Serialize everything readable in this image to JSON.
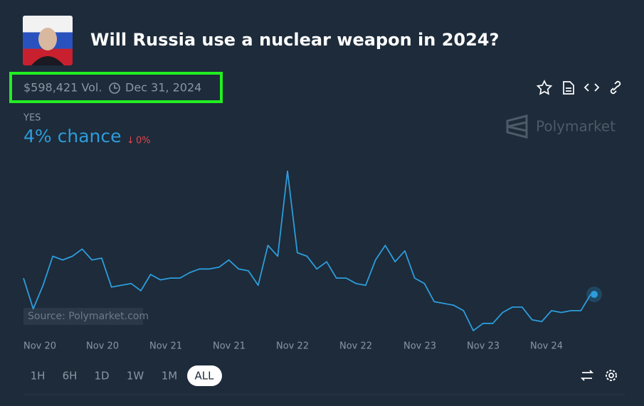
{
  "header": {
    "title": "Will Russia use a nuclear weapon in 2024?",
    "volume": "$598,421 Vol.",
    "end_date": "Dec 31, 2024"
  },
  "outcome": {
    "name": "YES",
    "chance": "4% chance",
    "change": "0%"
  },
  "brand": "Polymarket",
  "chart_data": {
    "type": "line",
    "series": [
      {
        "color": "#2d9cdb",
        "values": [
          4.9,
          3.2,
          4.5,
          6.1,
          5.9,
          6.1,
          6.5,
          5.9,
          6.0,
          4.4,
          4.5,
          4.6,
          4.2,
          5.1,
          4.8,
          4.9,
          4.9,
          5.2,
          5.4,
          5.4,
          5.5,
          5.9,
          5.4,
          5.3,
          4.5,
          6.7,
          6.1,
          10.8,
          6.3,
          6.1,
          5.4,
          5.8,
          4.9,
          4.9,
          4.6,
          4.5,
          5.9,
          6.7,
          5.8,
          6.4,
          4.9,
          4.6,
          3.6,
          3.5,
          3.4,
          3.1,
          2.0,
          2.4,
          2.4,
          3.0,
          3.3,
          3.3,
          2.6,
          2.5,
          3.1,
          3.0,
          3.1,
          3.1,
          4.0
        ]
      }
    ],
    "ylim": [
      2,
      12
    ],
    "x_labels": [
      "Nov 20",
      "Nov 20",
      "Nov 21",
      "Nov 21",
      "Nov 22",
      "Nov 22",
      "Nov 23",
      "Nov 23",
      "Nov 24"
    ],
    "source": "Source: Polymarket.com"
  },
  "time_ranges": [
    "1H",
    "6H",
    "1D",
    "1W",
    "1M",
    "ALL"
  ],
  "active_range": 5
}
